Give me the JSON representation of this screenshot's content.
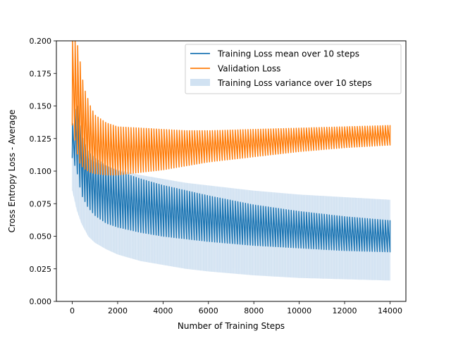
{
  "chart_data": {
    "type": "line",
    "title": "",
    "xlabel": "Number of Training Steps",
    "ylabel": "Cross Entropy Loss - Average",
    "xlim": [
      -700,
      14700
    ],
    "ylim": [
      0.0,
      0.2
    ],
    "x_ticks": [
      0,
      2000,
      4000,
      6000,
      8000,
      10000,
      12000,
      14000
    ],
    "x_tick_labels": [
      "0",
      "2000",
      "4000",
      "6000",
      "8000",
      "10000",
      "12000",
      "14000"
    ],
    "y_ticks": [
      0.0,
      0.025,
      0.05,
      0.075,
      0.1,
      0.125,
      0.15,
      0.175,
      0.2
    ],
    "y_tick_labels": [
      "0.000",
      "0.025",
      "0.050",
      "0.075",
      "0.100",
      "0.125",
      "0.150",
      "0.175",
      "0.200"
    ],
    "grid": false,
    "legend_position": "top-right",
    "legend": [
      {
        "label": "Training Loss mean over 10 steps",
        "kind": "line",
        "color": "#1f77b4"
      },
      {
        "label": "Validation Loss",
        "kind": "line",
        "color": "#ff7f0e"
      },
      {
        "label": "Training Loss variance over 10 steps",
        "kind": "band",
        "color": "#c6dbef"
      }
    ],
    "series": [
      {
        "legend_ref": 0,
        "color": "#1f77b4",
        "oscillation_period_steps": 112,
        "x": [
          0,
          200,
          400,
          700,
          1000,
          1500,
          2000,
          3000,
          4000,
          5000,
          6000,
          8000,
          10000,
          12000,
          14000
        ],
        "upper": [
          0.135,
          0.155,
          0.128,
          0.115,
          0.11,
          0.104,
          0.1,
          0.094,
          0.089,
          0.085,
          0.081,
          0.074,
          0.069,
          0.065,
          0.062
        ],
        "lower": [
          0.11,
          0.1,
          0.082,
          0.072,
          0.066,
          0.06,
          0.057,
          0.053,
          0.05,
          0.048,
          0.046,
          0.043,
          0.041,
          0.039,
          0.038
        ]
      },
      {
        "legend_ref": 2,
        "color": "#1f77b4",
        "x": [
          0,
          200,
          400,
          700,
          1000,
          1500,
          2000,
          3000,
          4000,
          5000,
          6000,
          8000,
          10000,
          12000,
          14000
        ],
        "upper": [
          0.14,
          0.125,
          0.115,
          0.11,
          0.107,
          0.104,
          0.101,
          0.097,
          0.094,
          0.091,
          0.089,
          0.085,
          0.082,
          0.08,
          0.078
        ],
        "lower": [
          0.085,
          0.07,
          0.06,
          0.05,
          0.045,
          0.04,
          0.036,
          0.031,
          0.028,
          0.025,
          0.023,
          0.02,
          0.018,
          0.017,
          0.016
        ]
      },
      {
        "legend_ref": 1,
        "color": "#ff7f0e",
        "oscillation_period_steps": 112,
        "x": [
          0,
          200,
          300,
          500,
          800,
          1000,
          1500,
          2000,
          3000,
          4000,
          5000,
          6000,
          8000,
          10000,
          12000,
          14000
        ],
        "upper": [
          0.2,
          0.2,
          0.19,
          0.165,
          0.15,
          0.143,
          0.137,
          0.134,
          0.133,
          0.132,
          0.131,
          0.131,
          0.132,
          0.133,
          0.134,
          0.135
        ],
        "lower": [
          0.135,
          0.115,
          0.107,
          0.102,
          0.099,
          0.098,
          0.097,
          0.097,
          0.099,
          0.101,
          0.104,
          0.107,
          0.111,
          0.115,
          0.118,
          0.12
        ]
      }
    ]
  }
}
